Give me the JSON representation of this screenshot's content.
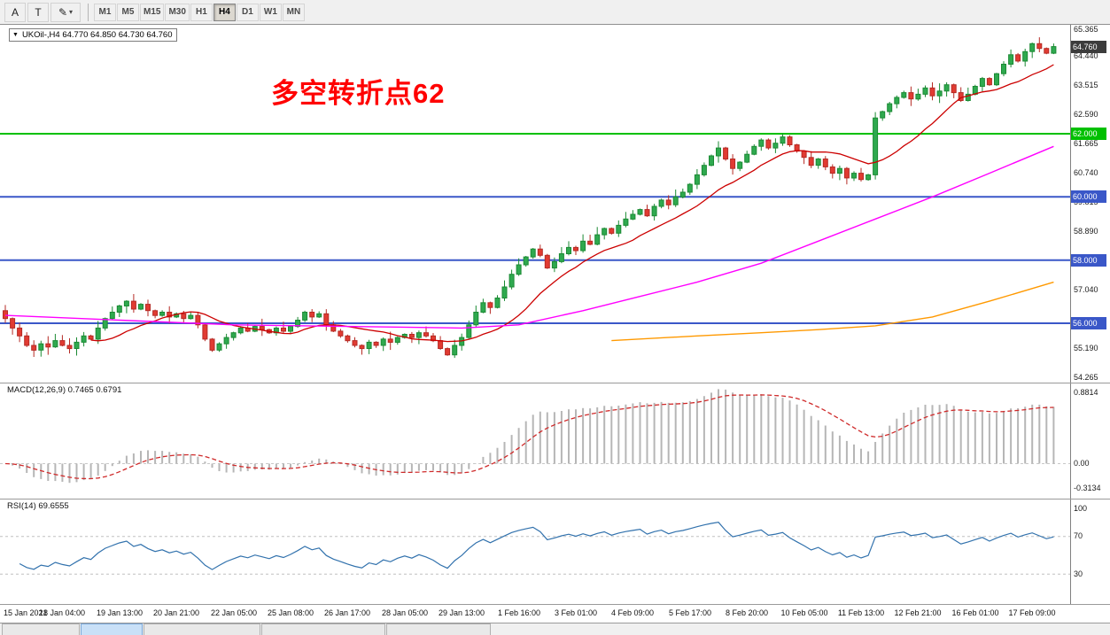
{
  "toolbar": {
    "annotate_buttons": [
      {
        "id": "cursor-a",
        "label": "A"
      },
      {
        "id": "text",
        "label": "T"
      },
      {
        "id": "draw",
        "label": "✎"
      }
    ],
    "timeframes": [
      "M1",
      "M5",
      "M15",
      "M30",
      "H1",
      "H4",
      "D1",
      "W1",
      "MN"
    ],
    "active_timeframe": "H4"
  },
  "chart": {
    "title": "UKOil-,H4 64.770 64.850 64.730 64.760",
    "annotation": "多空转折点62",
    "annotation_color": "#FF0000"
  },
  "price_axis": {
    "ticks": [
      "65.365",
      "64.440",
      "63.515",
      "62.590",
      "61.665",
      "60.740",
      "59.815",
      "58.890",
      "57.040",
      "55.190",
      "54.265"
    ],
    "current": {
      "label": "64.760",
      "bg": "#3c3c3c"
    },
    "levels": [
      {
        "label": "62.000",
        "value": 62.0,
        "bg": "#00c000"
      },
      {
        "label": "60.000",
        "value": 60.0,
        "bg": "#3a57c8"
      },
      {
        "label": "58.000",
        "value": 58.0,
        "bg": "#3a57c8"
      },
      {
        "label": "56.000",
        "value": 56.0,
        "bg": "#3a57c8"
      }
    ]
  },
  "chart_data": {
    "type": "candlestick",
    "symbol": "UKOil-",
    "timeframe": "H4",
    "current_price": 64.76,
    "first_open": 56.4,
    "closes": [
      56.15,
      55.85,
      55.6,
      55.3,
      55.15,
      55.35,
      55.25,
      55.45,
      55.3,
      55.2,
      55.4,
      55.6,
      55.5,
      55.85,
      56.15,
      56.35,
      56.55,
      56.7,
      56.45,
      56.6,
      56.4,
      56.25,
      56.35,
      56.2,
      56.3,
      56.15,
      56.25,
      55.95,
      55.5,
      55.15,
      55.35,
      55.55,
      55.7,
      55.85,
      55.75,
      55.9,
      55.8,
      55.7,
      55.85,
      55.75,
      55.9,
      56.1,
      56.35,
      56.2,
      56.3,
      55.95,
      55.75,
      55.6,
      55.45,
      55.3,
      55.2,
      55.4,
      55.3,
      55.5,
      55.4,
      55.55,
      55.65,
      55.55,
      55.7,
      55.6,
      55.45,
      55.2,
      55.0,
      55.3,
      55.55,
      55.95,
      56.35,
      56.65,
      56.5,
      56.8,
      57.15,
      57.55,
      57.85,
      58.1,
      58.35,
      58.15,
      57.75,
      57.95,
      58.2,
      58.4,
      58.3,
      58.6,
      58.5,
      58.8,
      59.0,
      58.85,
      59.1,
      59.3,
      59.45,
      59.6,
      59.4,
      59.7,
      59.9,
      59.75,
      60.0,
      60.15,
      60.4,
      60.7,
      61.0,
      61.3,
      61.55,
      61.2,
      60.9,
      61.1,
      61.35,
      61.6,
      61.8,
      61.55,
      61.7,
      61.9,
      61.65,
      61.45,
      61.25,
      61.0,
      61.2,
      60.95,
      60.75,
      60.9,
      60.6,
      60.75,
      60.55,
      60.7,
      62.5,
      62.7,
      62.95,
      63.15,
      63.3,
      63.1,
      63.25,
      63.45,
      63.2,
      63.35,
      63.55,
      63.3,
      63.05,
      63.25,
      63.5,
      63.75,
      63.55,
      63.9,
      64.2,
      64.5,
      64.3,
      64.6,
      64.85,
      64.7,
      64.55,
      64.76
    ],
    "hlines": [
      {
        "price": 62.0,
        "color": "#00c000"
      },
      {
        "price": 60.0,
        "color": "#3a57c8"
      },
      {
        "price": 58.0,
        "color": "#3a57c8"
      },
      {
        "price": 56.0,
        "color": "#3a57c8"
      }
    ],
    "ma_red_period": 13,
    "ma_magenta_points": [
      [
        0,
        56.25
      ],
      [
        16,
        56.1
      ],
      [
        32,
        55.95
      ],
      [
        48,
        55.9
      ],
      [
        64,
        55.85
      ],
      [
        72,
        55.95
      ],
      [
        81,
        56.4
      ],
      [
        89,
        56.85
      ],
      [
        97,
        57.3
      ],
      [
        106,
        57.9
      ],
      [
        114,
        58.6
      ],
      [
        122,
        59.3
      ],
      [
        130,
        60.0
      ],
      [
        138,
        60.75
      ],
      [
        147,
        61.6
      ]
    ],
    "ma_orange_points": [
      [
        85,
        55.45
      ],
      [
        97,
        55.6
      ],
      [
        106,
        55.7
      ],
      [
        114,
        55.8
      ],
      [
        122,
        55.92
      ],
      [
        130,
        56.2
      ],
      [
        138,
        56.7
      ],
      [
        147,
        57.3
      ]
    ],
    "colors": {
      "up": "#2fa94f",
      "up_border": "#1b8a33",
      "down": "#e13b32",
      "down_border": "#b52a24",
      "ma_red": "#cc0000",
      "ma_magenta": "#ff00ff",
      "ma_orange": "#ff9900"
    }
  },
  "macd": {
    "label": "MACD(12,26,9) 0.7465 0.6791",
    "fast": 12,
    "slow": 26,
    "signal_period": 9,
    "axis_ticks": [
      0.8814,
      0.0,
      -0.3134
    ],
    "axis_tick_labels": [
      "0.8814",
      "0.00",
      "-0.3134"
    ],
    "hist_color": "#b6b6b6",
    "signal_color": "#cf2a2a"
  },
  "rsi": {
    "label": "RSI(14) 69.6555",
    "period": 14,
    "axis_ticks": [
      100,
      70,
      30
    ],
    "axis_tick_labels": [
      "100",
      "70",
      "30"
    ],
    "levels": [
      70,
      30
    ],
    "line_color": "#3272ad"
  },
  "time_axis": {
    "candles_per_label": 8,
    "labels": [
      "15 Jan 2021",
      "18 Jan 04:00",
      "19 Jan 13:00",
      "20 Jan 21:00",
      "22 Jan 05:00",
      "25 Jan 08:00",
      "26 Jan 17:00",
      "28 Jan 05:00",
      "29 Jan 13:00",
      "1 Feb 16:00",
      "3 Feb 01:00",
      "4 Feb 09:00",
      "5 Feb 17:00",
      "8 Feb 20:00",
      "10 Feb 05:00",
      "11 Feb 13:00",
      "12 Feb 21:00",
      "16 Feb 01:00",
      "17 Feb 09:00"
    ]
  },
  "tabs": {
    "count": 5,
    "active_index": 1,
    "widths": [
      88,
      70,
      132,
      140,
      118
    ]
  }
}
